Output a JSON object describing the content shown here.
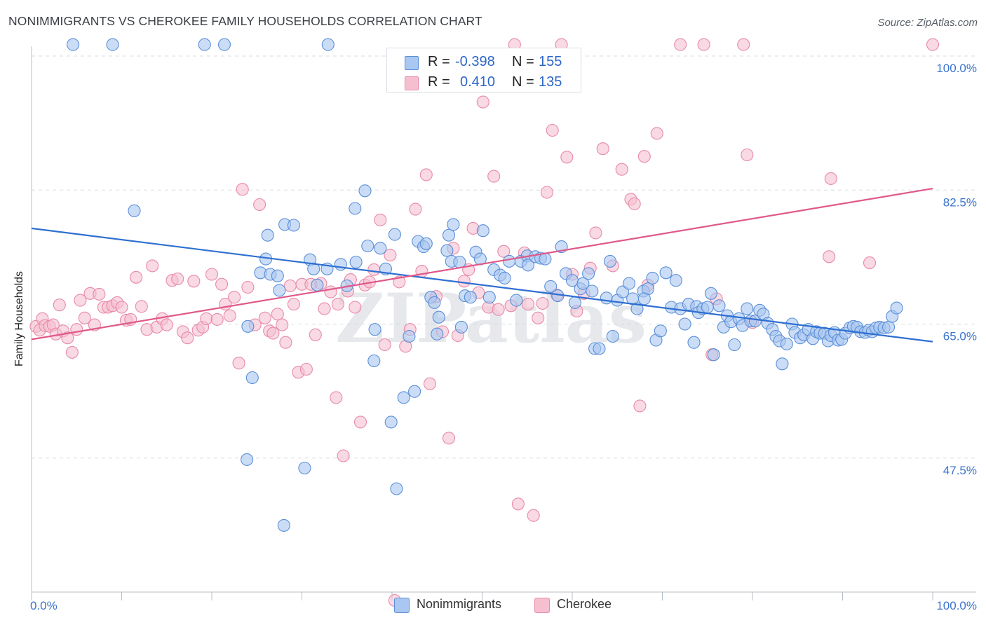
{
  "title": "NONIMMIGRANTS VS CHEROKEE FAMILY HOUSEHOLDS CORRELATION CHART",
  "source": "Source: ZipAtlas.com",
  "watermark": "ZIPatlas",
  "legend_top": [
    {
      "r_label": "R =",
      "r_value": "-0.398",
      "n_label": "N =",
      "n_value": "155"
    },
    {
      "r_label": "R =",
      "r_value": "0.410",
      "n_label": "N =",
      "n_value": "135"
    }
  ],
  "colors": {
    "blue_fill": "#a9c7f0",
    "blue_stroke": "#5b8fd8",
    "blue_line": "#2e6fd1",
    "pink_fill": "#f5bfd0",
    "pink_stroke": "#e88aa8",
    "pink_line": "#e0588a",
    "axis_text": "#3c74cc",
    "grid": "#d7dbe0"
  },
  "chart_data": {
    "type": "scatter",
    "title": "NONIMMIGRANTS VS CHEROKEE FAMILY HOUSEHOLDS CORRELATION CHART",
    "xlabel": "",
    "ylabel": "Family Households",
    "xlim": [
      0,
      100
    ],
    "ylim": [
      30,
      100
    ],
    "x_tick_labels": [
      "0.0%",
      "100.0%"
    ],
    "y_ticks": [
      47.5,
      65.0,
      82.5,
      100.0
    ],
    "y_tick_labels": [
      "47.5%",
      "65.0%",
      "82.5%",
      "100.0%"
    ],
    "grid": true,
    "legend_position": "bottom",
    "series": [
      {
        "name": "Nonimmigrants",
        "color": "#a9c7f0",
        "R": -0.398,
        "N": 155,
        "trend": [
          [
            0,
            77.5
          ],
          [
            100,
            62.7
          ]
        ],
        "points": [
          [
            4.6,
            101.5
          ],
          [
            9.0,
            101.5
          ],
          [
            19.2,
            101.5
          ],
          [
            21.4,
            101.5
          ],
          [
            32.9,
            101.5
          ],
          [
            11.4,
            79.8
          ],
          [
            24.0,
            64.7
          ],
          [
            23.9,
            47.3
          ],
          [
            24.5,
            58.0
          ],
          [
            25.4,
            71.7
          ],
          [
            26.2,
            76.6
          ],
          [
            26.5,
            71.5
          ],
          [
            26.0,
            73.5
          ],
          [
            27.3,
            71.3
          ],
          [
            28.1,
            78.0
          ],
          [
            29.1,
            77.9
          ],
          [
            27.5,
            69.4
          ],
          [
            30.9,
            73.4
          ],
          [
            31.3,
            72.2
          ],
          [
            31.7,
            70.1
          ],
          [
            30.3,
            46.2
          ],
          [
            28.0,
            38.7
          ],
          [
            32.8,
            72.2
          ],
          [
            34.3,
            72.8
          ],
          [
            35.0,
            70.0
          ],
          [
            35.9,
            80.1
          ],
          [
            36.0,
            73.1
          ],
          [
            37.0,
            82.4
          ],
          [
            37.3,
            75.2
          ],
          [
            38.1,
            64.3
          ],
          [
            38.0,
            60.2
          ],
          [
            38.7,
            74.9
          ],
          [
            39.3,
            72.2
          ],
          [
            39.9,
            52.2
          ],
          [
            40.3,
            76.7
          ],
          [
            40.5,
            43.5
          ],
          [
            41.3,
            55.4
          ],
          [
            41.9,
            63.4
          ],
          [
            42.5,
            56.2
          ],
          [
            42.9,
            75.8
          ],
          [
            43.5,
            75.1
          ],
          [
            43.8,
            75.5
          ],
          [
            44.3,
            68.5
          ],
          [
            44.7,
            67.8
          ],
          [
            45.0,
            63.7
          ],
          [
            45.2,
            65.9
          ],
          [
            46.1,
            74.6
          ],
          [
            46.6,
            73.2
          ],
          [
            46.3,
            76.6
          ],
          [
            46.8,
            78.0
          ],
          [
            47.5,
            73.1
          ],
          [
            47.7,
            64.6
          ],
          [
            48.1,
            68.7
          ],
          [
            48.7,
            68.5
          ],
          [
            49.3,
            74.4
          ],
          [
            49.8,
            73.5
          ],
          [
            50.1,
            77.2
          ],
          [
            50.8,
            68.5
          ],
          [
            51.3,
            72.1
          ],
          [
            52.0,
            71.4
          ],
          [
            52.5,
            71.0
          ],
          [
            53.0,
            73.2
          ],
          [
            53.8,
            68.1
          ],
          [
            54.3,
            73.2
          ],
          [
            55.0,
            73.9
          ],
          [
            55.1,
            72.7
          ],
          [
            55.9,
            73.8
          ],
          [
            56.5,
            73.6
          ],
          [
            57.0,
            73.5
          ],
          [
            57.6,
            69.9
          ],
          [
            58.4,
            68.7
          ],
          [
            58.8,
            75.1
          ],
          [
            59.3,
            71.6
          ],
          [
            60.0,
            70.7
          ],
          [
            60.3,
            67.8
          ],
          [
            60.9,
            69.6
          ],
          [
            61.2,
            70.3
          ],
          [
            61.8,
            71.6
          ],
          [
            62.2,
            69.3
          ],
          [
            62.5,
            61.8
          ],
          [
            63.0,
            61.8
          ],
          [
            63.8,
            68.4
          ],
          [
            64.2,
            73.2
          ],
          [
            64.5,
            63.4
          ],
          [
            65.0,
            68.1
          ],
          [
            65.6,
            69.2
          ],
          [
            66.3,
            70.3
          ],
          [
            66.7,
            68.3
          ],
          [
            67.2,
            67.0
          ],
          [
            67.9,
            69.3
          ],
          [
            68.4,
            69.6
          ],
          [
            68.9,
            71.0
          ],
          [
            69.3,
            62.9
          ],
          [
            69.8,
            64.1
          ],
          [
            70.4,
            71.7
          ],
          [
            71.0,
            67.2
          ],
          [
            71.5,
            70.7
          ],
          [
            72.0,
            67.0
          ],
          [
            72.5,
            65.0
          ],
          [
            72.9,
            67.6
          ],
          [
            73.5,
            62.6
          ],
          [
            73.8,
            67.3
          ],
          [
            74.0,
            66.5
          ],
          [
            74.5,
            67.0
          ],
          [
            75.0,
            67.2
          ],
          [
            75.4,
            69.0
          ],
          [
            75.7,
            61.0
          ],
          [
            76.3,
            67.4
          ],
          [
            76.8,
            64.6
          ],
          [
            77.2,
            66.1
          ],
          [
            77.6,
            65.3
          ],
          [
            78.0,
            62.3
          ],
          [
            78.5,
            65.7
          ],
          [
            78.9,
            64.8
          ],
          [
            79.4,
            67.0
          ],
          [
            79.8,
            65.4
          ],
          [
            80.3,
            65.4
          ],
          [
            80.8,
            66.8
          ],
          [
            81.2,
            66.3
          ],
          [
            81.7,
            65.1
          ],
          [
            82.2,
            64.3
          ],
          [
            82.6,
            63.4
          ],
          [
            83.0,
            62.8
          ],
          [
            83.3,
            59.8
          ],
          [
            83.8,
            62.4
          ],
          [
            84.4,
            65.0
          ],
          [
            84.7,
            63.9
          ],
          [
            85.3,
            63.2
          ],
          [
            85.7,
            63.6
          ],
          [
            86.2,
            64.3
          ],
          [
            86.7,
            63.1
          ],
          [
            87.1,
            64.0
          ],
          [
            87.5,
            63.8
          ],
          [
            88.0,
            63.8
          ],
          [
            88.4,
            62.8
          ],
          [
            88.7,
            63.5
          ],
          [
            89.1,
            63.9
          ],
          [
            89.5,
            62.9
          ],
          [
            89.9,
            63.0
          ],
          [
            90.3,
            63.8
          ],
          [
            90.8,
            64.5
          ],
          [
            91.2,
            64.7
          ],
          [
            91.6,
            64.6
          ],
          [
            92.0,
            64.0
          ],
          [
            92.5,
            63.9
          ],
          [
            92.9,
            64.2
          ],
          [
            93.3,
            64.0
          ],
          [
            93.7,
            64.5
          ],
          [
            94.1,
            64.6
          ],
          [
            94.6,
            64.5
          ],
          [
            95.1,
            64.6
          ],
          [
            95.5,
            66.0
          ],
          [
            96.0,
            67.1
          ],
          [
            68.0,
            68.3
          ]
        ]
      },
      {
        "name": "Cherokee",
        "color": "#f5bfd0",
        "R": 0.41,
        "N": 135,
        "trend": [
          [
            0,
            63.0
          ],
          [
            100,
            82.7
          ]
        ],
        "points": [
          [
            0.5,
            64.7
          ],
          [
            0.9,
            64.2
          ],
          [
            1.2,
            65.7
          ],
          [
            1.5,
            64.8
          ],
          [
            2.0,
            64.7
          ],
          [
            2.4,
            64.9
          ],
          [
            2.7,
            63.7
          ],
          [
            3.1,
            67.5
          ],
          [
            3.5,
            64.1
          ],
          [
            4.0,
            63.2
          ],
          [
            4.5,
            61.3
          ],
          [
            5.0,
            64.3
          ],
          [
            5.4,
            68.1
          ],
          [
            5.9,
            65.8
          ],
          [
            6.5,
            69.0
          ],
          [
            7.0,
            64.9
          ],
          [
            7.5,
            68.9
          ],
          [
            8.0,
            67.2
          ],
          [
            8.5,
            67.2
          ],
          [
            9.0,
            67.4
          ],
          [
            9.5,
            67.8
          ],
          [
            10.0,
            67.2
          ],
          [
            10.5,
            65.5
          ],
          [
            11.0,
            65.6
          ],
          [
            11.6,
            71.1
          ],
          [
            12.2,
            67.3
          ],
          [
            12.8,
            64.3
          ],
          [
            13.4,
            72.6
          ],
          [
            13.9,
            64.6
          ],
          [
            14.5,
            65.7
          ],
          [
            15.0,
            64.9
          ],
          [
            15.6,
            70.7
          ],
          [
            16.2,
            70.9
          ],
          [
            16.8,
            64.0
          ],
          [
            17.3,
            63.2
          ],
          [
            18.0,
            70.6
          ],
          [
            18.5,
            64.2
          ],
          [
            19.0,
            64.6
          ],
          [
            19.4,
            65.7
          ],
          [
            20.0,
            71.5
          ],
          [
            20.6,
            65.6
          ],
          [
            21.1,
            70.2
          ],
          [
            21.5,
            67.6
          ],
          [
            22.0,
            66.1
          ],
          [
            22.5,
            68.5
          ],
          [
            23.0,
            59.9
          ],
          [
            23.4,
            82.6
          ],
          [
            24.0,
            69.8
          ],
          [
            24.8,
            64.9
          ],
          [
            25.3,
            80.6
          ],
          [
            25.9,
            65.8
          ],
          [
            26.4,
            64.1
          ],
          [
            26.8,
            63.8
          ],
          [
            27.3,
            66.3
          ],
          [
            27.8,
            64.9
          ],
          [
            28.2,
            62.6
          ],
          [
            28.7,
            70.0
          ],
          [
            29.1,
            67.6
          ],
          [
            29.6,
            58.7
          ],
          [
            30.0,
            70.2
          ],
          [
            30.5,
            59.1
          ],
          [
            31.0,
            70.2
          ],
          [
            31.5,
            63.6
          ],
          [
            32.1,
            70.3
          ],
          [
            32.5,
            67.0
          ],
          [
            33.2,
            69.2
          ],
          [
            33.8,
            55.4
          ],
          [
            34.0,
            67.6
          ],
          [
            34.6,
            47.8
          ],
          [
            35.1,
            69.3
          ],
          [
            35.4,
            70.8
          ],
          [
            35.9,
            67.2
          ],
          [
            36.5,
            52.2
          ],
          [
            37.0,
            70.1
          ],
          [
            37.5,
            70.5
          ],
          [
            38.0,
            72.1
          ],
          [
            38.7,
            78.6
          ],
          [
            39.2,
            62.3
          ],
          [
            39.8,
            74.0
          ],
          [
            40.3,
            28.9
          ],
          [
            40.8,
            70.5
          ],
          [
            41.5,
            62.1
          ],
          [
            42.0,
            64.3
          ],
          [
            42.6,
            80.0
          ],
          [
            43.3,
            71.9
          ],
          [
            43.8,
            84.5
          ],
          [
            44.2,
            57.2
          ],
          [
            44.9,
            68.6
          ],
          [
            45.6,
            64.0
          ],
          [
            46.3,
            50.1
          ],
          [
            46.8,
            74.9
          ],
          [
            47.3,
            63.5
          ],
          [
            48.0,
            70.6
          ],
          [
            48.5,
            72.1
          ],
          [
            49.0,
            77.5
          ],
          [
            49.6,
            69.1
          ],
          [
            50.1,
            94.0
          ],
          [
            50.7,
            67.2
          ],
          [
            51.3,
            84.3
          ],
          [
            51.8,
            66.9
          ],
          [
            52.4,
            74.5
          ],
          [
            53.2,
            67.4
          ],
          [
            53.6,
            101.5
          ],
          [
            54.0,
            41.5
          ],
          [
            54.7,
            74.3
          ],
          [
            55.1,
            67.6
          ],
          [
            55.7,
            40.0
          ],
          [
            56.2,
            65.8
          ],
          [
            56.7,
            67.7
          ],
          [
            57.2,
            82.2
          ],
          [
            57.8,
            90.3
          ],
          [
            58.3,
            68.8
          ],
          [
            58.8,
            101.5
          ],
          [
            59.4,
            86.8
          ],
          [
            60.0,
            71.5
          ],
          [
            60.5,
            66.7
          ],
          [
            61.3,
            69.0
          ],
          [
            62.0,
            72.3
          ],
          [
            62.6,
            76.9
          ],
          [
            63.4,
            87.9
          ],
          [
            64.5,
            72.6
          ],
          [
            65.5,
            85.2
          ],
          [
            66.5,
            81.3
          ],
          [
            66.9,
            80.7
          ],
          [
            67.5,
            54.3
          ],
          [
            68.0,
            86.9
          ],
          [
            68.4,
            70.1
          ],
          [
            69.4,
            89.9
          ],
          [
            72.0,
            101.5
          ],
          [
            74.6,
            101.5
          ],
          [
            75.5,
            61.0
          ],
          [
            76.0,
            68.3
          ],
          [
            79.0,
            101.5
          ],
          [
            79.4,
            87.1
          ],
          [
            80.0,
            65.2
          ],
          [
            88.7,
            84.0
          ],
          [
            88.5,
            73.8
          ],
          [
            93.0,
            73.0
          ],
          [
            100.0,
            101.5
          ]
        ]
      }
    ]
  }
}
